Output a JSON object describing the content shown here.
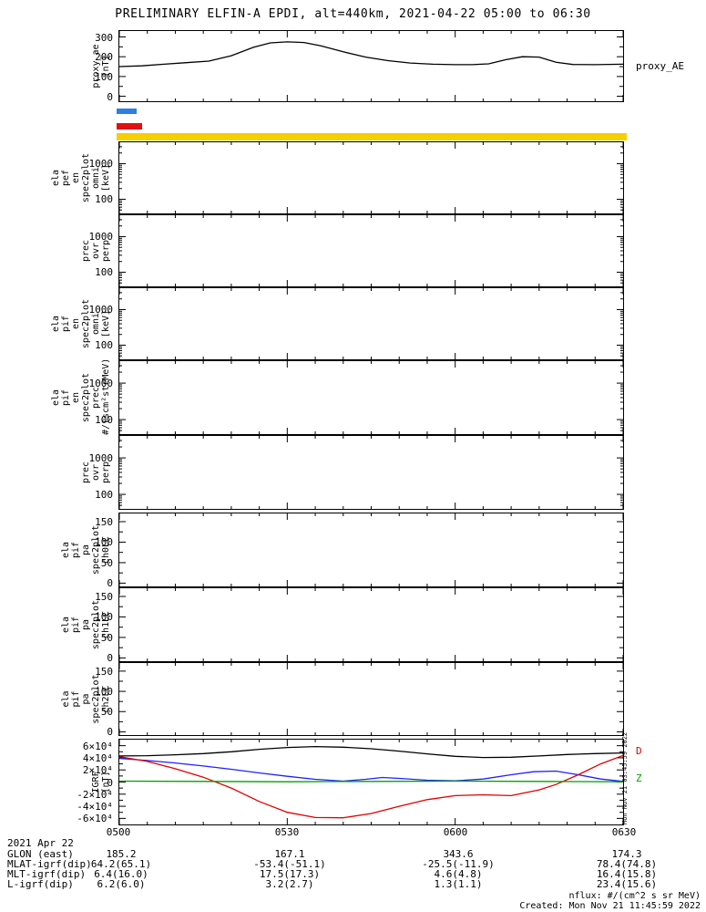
{
  "title": "PRELIMINARY ELFIN-A EPDI, alt=440km, 2021-04-22 05:00 to 06:30",
  "vertical_timestamp": "Mon Nov 21 03:45:59 2022",
  "footnotes": {
    "nflux": "nflux: #/(cm^2 s sr MeV)",
    "created": "Created: Mon Nov 21 11:45:59 2022"
  },
  "xaxis": {
    "tick_labels": [
      "0500",
      "0530",
      "0600",
      "0630"
    ],
    "range_minutes": [
      0,
      90
    ],
    "major_interval_min": 30,
    "minor_interval_min": 5
  },
  "legend_swatches": [
    {
      "name": "blue-swatch",
      "color": "#2d7fe0"
    },
    {
      "name": "red-swatch",
      "color": "#e01010"
    }
  ],
  "status_bar": {
    "color": "#f7ce00"
  },
  "ephemeris": {
    "date": "2021 Apr 22",
    "rows": [
      {
        "label": "GLON (east)",
        "values": [
          "185.2",
          "167.1",
          "343.6",
          "174.3"
        ]
      },
      {
        "label": "MLAT-igrf(dip)",
        "values": [
          "64.2(65.1)",
          "-53.4(-51.1)",
          "-25.5(-11.9)",
          "78.4(74.8)"
        ]
      },
      {
        "label": "MLT-igrf(dip)",
        "values": [
          "6.4(16.0)",
          "17.5(17.3)",
          "4.6(4.8)",
          "16.4(15.8)"
        ]
      },
      {
        "label": "L-igrf(dip)",
        "values": [
          "6.2(6.0)",
          "3.2(2.7)",
          "1.3(1.1)",
          "23.4(15.6)"
        ]
      }
    ]
  },
  "chart_data": [
    {
      "id": "proxy-ae",
      "type": "line",
      "scale": "linear",
      "ylabel_lines": [
        "proxy_ae",
        "[nT]"
      ],
      "ylim": [
        -25,
        330
      ],
      "yticks": [
        {
          "v": 0,
          "label": "0"
        },
        {
          "v": 100,
          "label": "100"
        },
        {
          "v": 200,
          "label": "200"
        },
        {
          "v": 300,
          "label": "300"
        }
      ],
      "yminor": [
        50,
        150,
        250
      ],
      "right_labels": [
        {
          "text": "proxy_AE",
          "color": "#000000"
        }
      ],
      "series": [
        {
          "name": "proxy_AE",
          "color": "#000000",
          "x": [
            0,
            4,
            8,
            12,
            16,
            20,
            24,
            27,
            30,
            33,
            36,
            40,
            44,
            48,
            52,
            56,
            60,
            63,
            66,
            69,
            72,
            75,
            78,
            81,
            85,
            90
          ],
          "y": [
            150,
            154,
            162,
            170,
            178,
            205,
            248,
            270,
            275,
            272,
            255,
            225,
            198,
            180,
            168,
            162,
            160,
            160,
            164,
            185,
            200,
            198,
            172,
            161,
            160,
            162
          ]
        }
      ]
    },
    {
      "id": "ela-pef-en-omni",
      "type": "line",
      "scale": "log",
      "ylabel_lines": [
        "ela",
        "pef",
        "en",
        "spec2plot",
        "omni",
        "[keV]"
      ],
      "ylim": [
        40,
        4000
      ],
      "yticks": [
        {
          "v": 1000,
          "label": "1000"
        },
        {
          "v": 100,
          "label": "100"
        }
      ],
      "series": []
    },
    {
      "id": "prec-ovr-perp-top",
      "type": "line",
      "scale": "log",
      "ylabel_lines": [
        "prec",
        "ovr",
        "perp"
      ],
      "ylim": [
        40,
        4000
      ],
      "yticks": [
        {
          "v": 1000,
          "label": "1000"
        },
        {
          "v": 100,
          "label": "100"
        }
      ],
      "series": []
    },
    {
      "id": "ela-pif-en-omni",
      "type": "line",
      "scale": "log",
      "ylabel_lines": [
        "ela",
        "pif",
        "en",
        "spec2plot",
        "omni",
        "[keV]"
      ],
      "ylim": [
        40,
        4000
      ],
      "yticks": [
        {
          "v": 1000,
          "label": "1000"
        },
        {
          "v": 100,
          "label": "100"
        }
      ],
      "series": []
    },
    {
      "id": "ela-pif-en-prec",
      "type": "line",
      "scale": "log",
      "ylabel_lines": [
        "ela",
        "pif",
        "en",
        "spec2plot",
        "prec",
        "#/(scm²strMeV)"
      ],
      "ylim": [
        40,
        4000
      ],
      "yticks": [
        {
          "v": 1000,
          "label": "1000"
        },
        {
          "v": 100,
          "label": "100"
        }
      ],
      "series": []
    },
    {
      "id": "prec-ovr-perp-bottom",
      "type": "line",
      "scale": "log",
      "ylabel_lines": [
        "prec",
        "ovr",
        "perp"
      ],
      "ylim": [
        40,
        4000
      ],
      "yticks": [
        {
          "v": 1000,
          "label": "1000"
        },
        {
          "v": 100,
          "label": "100"
        }
      ],
      "series": []
    },
    {
      "id": "ela-pif-pa-ch0lc",
      "type": "line",
      "scale": "linear",
      "ylabel_lines": [
        "ela",
        "pif",
        "pa",
        "spec2plot",
        "ch0LC"
      ],
      "ylim": [
        -8,
        170
      ],
      "yticks": [
        {
          "v": 0,
          "label": "0"
        },
        {
          "v": 50,
          "label": "50"
        },
        {
          "v": 100,
          "label": "100"
        },
        {
          "v": 150,
          "label": "150"
        }
      ],
      "yminor": [
        25,
        75,
        125
      ],
      "series": []
    },
    {
      "id": "ela-pif-pa-ch1lc",
      "type": "line",
      "scale": "linear",
      "ylabel_lines": [
        "ela",
        "pif",
        "pa",
        "spec2plot",
        "ch1LC"
      ],
      "ylim": [
        -8,
        170
      ],
      "yticks": [
        {
          "v": 0,
          "label": "0"
        },
        {
          "v": 50,
          "label": "50"
        },
        {
          "v": 100,
          "label": "100"
        },
        {
          "v": 150,
          "label": "150"
        }
      ],
      "yminor": [
        25,
        75,
        125
      ],
      "series": []
    },
    {
      "id": "ela-pif-pa-ch2lc",
      "type": "line",
      "scale": "linear",
      "ylabel_lines": [
        "ela",
        "pif",
        "pa",
        "spec2plot",
        "ch2LC"
      ],
      "ylim": [
        -8,
        170
      ],
      "yticks": [
        {
          "v": 0,
          "label": "0"
        },
        {
          "v": 50,
          "label": "50"
        },
        {
          "v": 100,
          "label": "100"
        },
        {
          "v": 150,
          "label": "150"
        }
      ],
      "yminor": [
        25,
        75,
        125
      ],
      "series": []
    },
    {
      "id": "igrf",
      "type": "line",
      "scale": "linear",
      "ylabel_lines": [
        "IGRF",
        "[nT]"
      ],
      "ylim": [
        -70000,
        70000
      ],
      "yticks": [
        {
          "v": 60000,
          "label": "6×10⁴"
        },
        {
          "v": 40000,
          "label": "4×10⁴"
        },
        {
          "v": 20000,
          "label": "2×10⁴"
        },
        {
          "v": 0,
          "label": "0"
        },
        {
          "v": -20000,
          "label": "-2×10⁴"
        },
        {
          "v": -40000,
          "label": "-4×10⁴"
        },
        {
          "v": -60000,
          "label": "-6×10⁴"
        }
      ],
      "yminor": [
        50000,
        30000,
        10000,
        -10000,
        -30000,
        -50000
      ],
      "right_labels": [
        {
          "text": "D",
          "color": "#dd0000"
        },
        {
          "text": "Z",
          "color": "#00a000"
        }
      ],
      "series": [
        {
          "name": "line-black",
          "color": "#000000",
          "x": [
            0,
            5,
            10,
            15,
            20,
            25,
            30,
            35,
            40,
            45,
            50,
            55,
            60,
            65,
            70,
            75,
            80,
            85,
            90
          ],
          "y": [
            43000,
            43500,
            45000,
            47000,
            50000,
            54000,
            57000,
            58500,
            57500,
            55000,
            51000,
            46500,
            42500,
            40500,
            41000,
            43000,
            45500,
            47000,
            48000
          ]
        },
        {
          "name": "line-blue",
          "color": "#2020ff",
          "x": [
            0,
            5,
            10,
            15,
            20,
            25,
            30,
            35,
            40,
            44,
            47,
            50,
            55,
            60,
            65,
            70,
            74,
            78,
            82,
            86,
            90
          ],
          "y": [
            39000,
            35500,
            31500,
            26500,
            21000,
            15000,
            9500,
            4500,
            1500,
            4500,
            7500,
            6000,
            3000,
            2000,
            5000,
            12000,
            17000,
            18000,
            12000,
            5000,
            1000
          ]
        },
        {
          "name": "line-red",
          "color": "#e00000",
          "x": [
            0,
            5,
            10,
            15,
            20,
            25,
            30,
            35,
            40,
            45,
            50,
            55,
            60,
            65,
            70,
            75,
            78,
            82,
            86,
            90
          ],
          "y": [
            42000,
            34000,
            22000,
            8000,
            -10000,
            -32000,
            -50000,
            -58500,
            -59000,
            -52000,
            -40000,
            -29000,
            -22500,
            -21000,
            -22500,
            -13000,
            -4000,
            12000,
            30000,
            44000
          ]
        },
        {
          "name": "line-green",
          "color": "#00a000",
          "x": [
            0,
            15,
            30,
            45,
            60,
            75,
            90
          ],
          "y": [
            1500,
            1000,
            500,
            1000,
            1500,
            1000,
            500
          ]
        }
      ]
    }
  ]
}
